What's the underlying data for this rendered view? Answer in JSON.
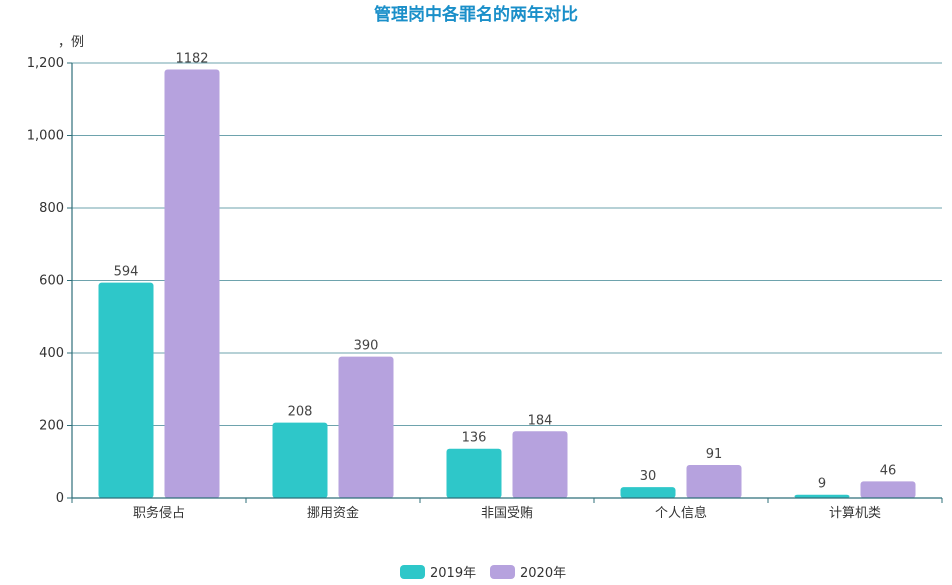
{
  "chart_data": {
    "type": "bar",
    "title": "管理岗中各罪名的两年对比",
    "ylabel": "，例",
    "xlabel": "",
    "categories": [
      "职务侵占",
      "挪用资金",
      "非国受贿",
      "个人信息",
      "计算机类"
    ],
    "series": [
      {
        "name": "2019年",
        "values": [
          594,
          208,
          136,
          30,
          9
        ],
        "color": "#2ec7c9"
      },
      {
        "name": "2020年",
        "values": [
          1182,
          390,
          184,
          91,
          46
        ],
        "color": "#b6a2de"
      }
    ],
    "ylim": [
      0,
      1200
    ],
    "yticks": [
      {
        "value": 0,
        "label": "0"
      },
      {
        "value": 200,
        "label": "200"
      },
      {
        "value": 400,
        "label": "400"
      },
      {
        "value": 600,
        "label": "600"
      },
      {
        "value": 800,
        "label": "800"
      },
      {
        "value": 1000,
        "label": "1,000"
      },
      {
        "value": 1200,
        "label": "1,200"
      }
    ],
    "grid": true,
    "legend_position": "bottom-center"
  },
  "colors": {
    "title": "#1a8fc9",
    "grid": "#6ea3ad",
    "axis": "#2f6f7a"
  }
}
